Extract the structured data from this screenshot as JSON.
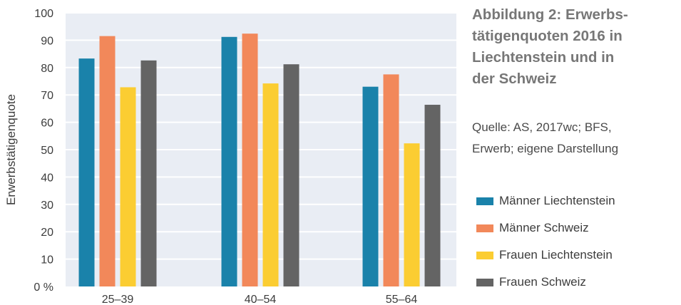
{
  "chart_data": {
    "type": "bar",
    "categories": [
      "25–39",
      "40–54",
      "55–64"
    ],
    "series": [
      {
        "name": "Männer Liechtenstein",
        "color": "#1a82aa",
        "values": [
          83.3,
          91.2,
          73.0
        ]
      },
      {
        "name": "Männer Schweiz",
        "color": "#f2885a",
        "values": [
          91.5,
          92.4,
          77.5
        ]
      },
      {
        "name": "Frauen Liechtenstein",
        "color": "#fbcd32",
        "values": [
          72.8,
          74.2,
          52.3
        ]
      },
      {
        "name": "Frauen Schweiz",
        "color": "#646464",
        "values": [
          82.6,
          81.2,
          66.4
        ]
      }
    ],
    "ylabel": "Erwerbstätigenquote",
    "ylim": [
      0,
      100
    ],
    "yticks": [
      "0 %",
      "10",
      "20",
      "30",
      "40",
      "50",
      "60",
      "70",
      "80",
      "90",
      "100"
    ],
    "grid": true,
    "legend_position": "right",
    "plot_background": "#e9edf4"
  },
  "figure": {
    "title_lines": [
      "Abbildung 2: Erwerbs-",
      "tätigenquoten 2016 in",
      "Liechtenstein und in",
      "der Schweiz"
    ],
    "source_lines": [
      "Quelle: AS, 2017wc; BFS,",
      "Erwerb; eigene Darstellung"
    ]
  }
}
